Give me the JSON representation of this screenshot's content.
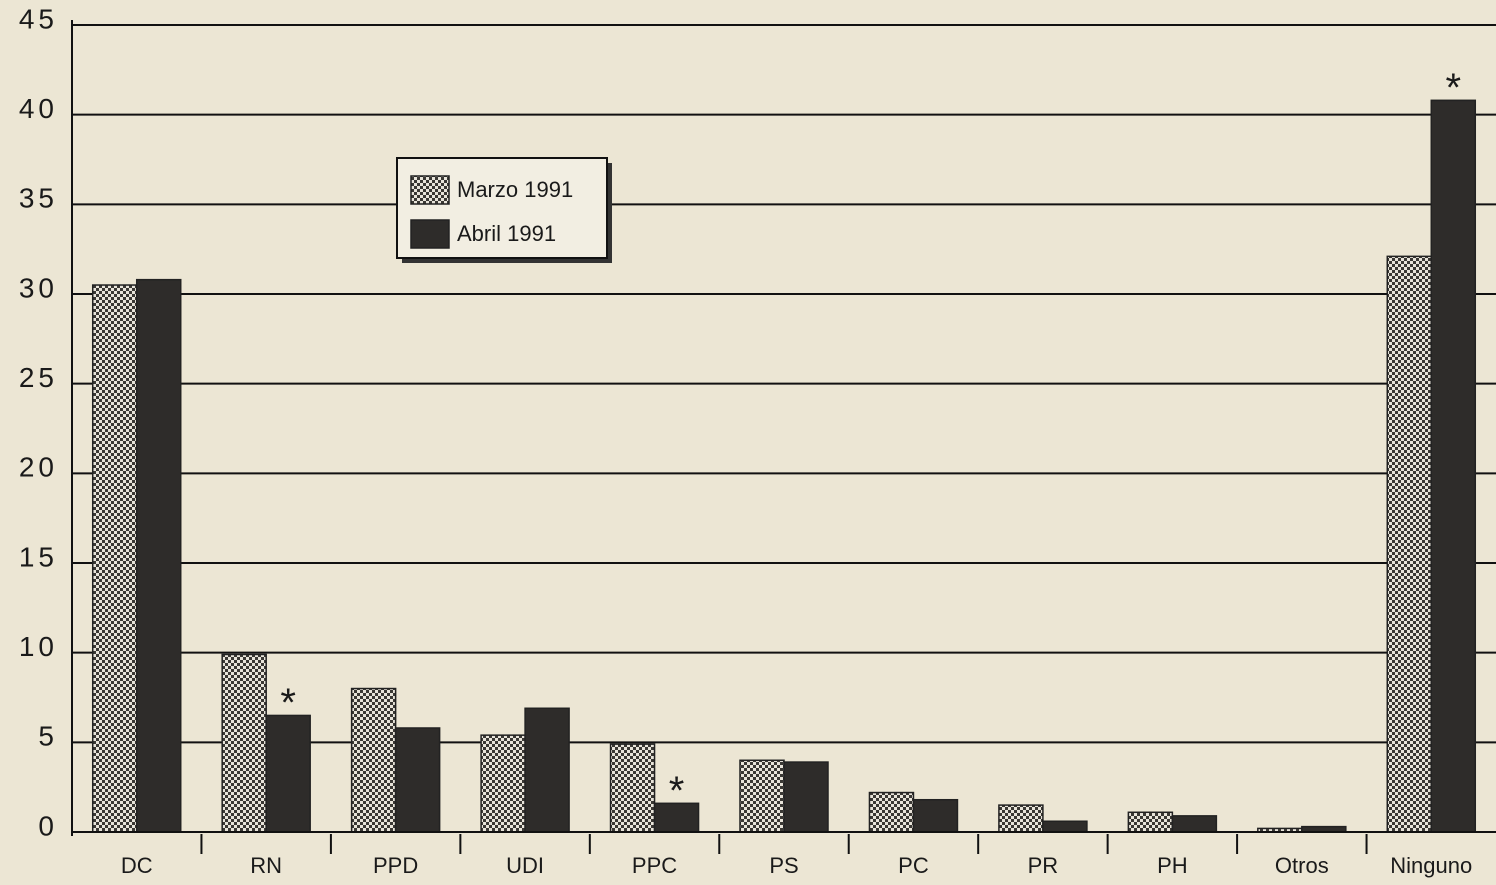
{
  "chart_data": {
    "type": "bar",
    "categories": [
      "DC",
      "RN",
      "PPD",
      "UDI",
      "PPC",
      "PS",
      "PC",
      "PR",
      "PH",
      "Otros",
      "Ninguno"
    ],
    "series": [
      {
        "name": "Marzo 1991",
        "color": "#b8b4aa",
        "pattern": "checker",
        "values": [
          30.5,
          9.9,
          8.0,
          5.4,
          4.9,
          4.0,
          2.2,
          1.5,
          1.1,
          0.2,
          32.1
        ]
      },
      {
        "name": "Abril 1991",
        "color": "#2e2c2a",
        "values": [
          30.8,
          6.5,
          5.8,
          6.9,
          1.6,
          3.9,
          1.8,
          0.6,
          0.9,
          0.3,
          40.8
        ]
      }
    ],
    "annotations": [
      {
        "text": "*",
        "category": "RN"
      },
      {
        "text": "*",
        "category": "PPC"
      },
      {
        "text": "*",
        "category": "Ninguno"
      }
    ],
    "ylim": [
      0,
      45
    ],
    "yticks": [
      0,
      5,
      10,
      15,
      20,
      25,
      30,
      35,
      40,
      45
    ],
    "grid": true,
    "legend": "upper-left"
  }
}
